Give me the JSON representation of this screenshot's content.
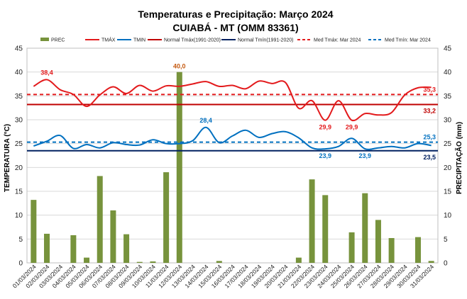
{
  "chart_data": {
    "type": "bar+line",
    "title": "Temperaturas e Precipitação: Março 2024",
    "subtitle": "CUIABÁ - MT (OMM 83361)",
    "ylabel_left": "TEMPERATURA  (°C)",
    "ylabel_right": "PRECIPITAÇÃO  (mm)",
    "ylim_left": [
      0,
      45
    ],
    "ylim_right": [
      0,
      45
    ],
    "yticks_left": [
      "0",
      "5",
      "10",
      "15",
      "20",
      "25",
      "30",
      "35",
      "40",
      "45"
    ],
    "yticks_right": [
      "0",
      "5",
      "10",
      "15",
      "20",
      "25",
      "30",
      "35",
      "40",
      "45"
    ],
    "categories": [
      "01/03/2024",
      "02/03/2024",
      "03/03/2024",
      "04/03/2024",
      "05/03/2024",
      "06/03/2024",
      "07/03/2024",
      "08/03/2024",
      "09/03/2024",
      "10/03/2024",
      "11/03/2024",
      "12/03/2024",
      "13/03/2024",
      "14/03/2024",
      "15/03/2024",
      "16/03/2024",
      "17/03/2024",
      "18/03/2024",
      "19/03/2024",
      "20/03/2024",
      "21/03/2024",
      "22/03/2024",
      "23/03/2024",
      "24/03/2024",
      "25/03/2024",
      "26/03/2024",
      "27/03/2024",
      "28/03/2024",
      "29/03/2024",
      "30/03/2024",
      "31/03/2024"
    ],
    "legend": {
      "prec": "PREC",
      "tmax": "TMÁX",
      "tmin": "TMIN",
      "normal_max": "Normal Tmáx(1991-2020)",
      "normal_min": "Normal Tmín(1991-2020)",
      "med_max": "Med Tmáx: Mar 2024",
      "med_min": "Med Tmín: Mar 2024"
    },
    "series": [
      {
        "name": "PREC",
        "axis": "right",
        "kind": "bar",
        "color": "#77933C",
        "values": [
          13.2,
          6.1,
          0,
          5.8,
          1.1,
          18.2,
          11.0,
          6.0,
          0.2,
          0.3,
          19.0,
          40.0,
          0,
          0,
          0.4,
          0,
          0,
          0,
          0,
          0,
          1.1,
          17.5,
          14.2,
          0,
          6.4,
          14.6,
          9.0,
          5.2,
          0,
          5.4,
          0.4
        ]
      },
      {
        "name": "TMÁX",
        "axis": "left",
        "kind": "line",
        "color": "#E31A1C",
        "values": [
          37.0,
          38.4,
          36.3,
          35.3,
          32.8,
          35.2,
          36.9,
          35.5,
          37.2,
          36.0,
          37.1,
          37.0,
          37.5,
          38.0,
          37.0,
          37.2,
          36.5,
          38.1,
          37.6,
          37.8,
          32.4,
          34.0,
          29.9,
          34.0,
          29.9,
          31.3,
          31.0,
          31.5,
          35.2,
          36.7,
          36.8
        ]
      },
      {
        "name": "TMIN",
        "axis": "left",
        "kind": "line",
        "color": "#0070C0",
        "values": [
          24.5,
          25.5,
          26.7,
          24.0,
          24.8,
          24.1,
          25.2,
          24.8,
          24.7,
          25.8,
          25.0,
          25.0,
          25.6,
          28.4,
          25.2,
          26.6,
          27.8,
          26.3,
          27.1,
          27.5,
          26.2,
          24.1,
          23.9,
          24.4,
          26.1,
          23.9,
          24.1,
          24.4,
          24.1,
          25.0,
          24.6
        ]
      },
      {
        "name": "Normal Tmáx(1991-2020)",
        "axis": "left",
        "kind": "hline",
        "value": 33.2,
        "color": "#C00000"
      },
      {
        "name": "Normal Tmín(1991-2020)",
        "axis": "left",
        "kind": "hline",
        "value": 23.5,
        "color": "#002060"
      },
      {
        "name": "Med Tmáx: Mar 2024",
        "axis": "left",
        "kind": "hline-dashed",
        "value": 35.3,
        "color": "#E31A1C"
      },
      {
        "name": "Med Tmín: Mar 2024",
        "axis": "left",
        "kind": "hline-dashed",
        "value": 25.3,
        "color": "#0070C0"
      }
    ],
    "annotations": [
      {
        "text": "38,4",
        "series": "TMÁX",
        "index": 1,
        "color": "#E31A1C"
      },
      {
        "text": "40,0",
        "series": "PREC",
        "index": 11,
        "color": "#C55A11"
      },
      {
        "text": "28,4",
        "series": "TMIN",
        "index": 13,
        "color": "#0070C0"
      },
      {
        "text": "29,9",
        "series": "TMÁX",
        "index": 22,
        "color": "#E31A1C"
      },
      {
        "text": "29,9",
        "series": "TMÁX",
        "index": 24,
        "color": "#E31A1C"
      },
      {
        "text": "23,9",
        "series": "TMIN",
        "index": 22,
        "color": "#0070C0"
      },
      {
        "text": "23,9",
        "series": "TMIN",
        "index": 25,
        "color": "#0070C0"
      },
      {
        "text": "35,3",
        "series": "Med Tmáx: Mar 2024",
        "color": "#E31A1C"
      },
      {
        "text": "33,2",
        "series": "Normal Tmáx(1991-2020)",
        "color": "#C00000"
      },
      {
        "text": "25,3",
        "series": "Med Tmín: Mar 2024",
        "color": "#0070C0"
      },
      {
        "text": "23,5",
        "series": "Normal Tmín(1991-2020)",
        "color": "#002060"
      }
    ],
    "grid": true
  }
}
